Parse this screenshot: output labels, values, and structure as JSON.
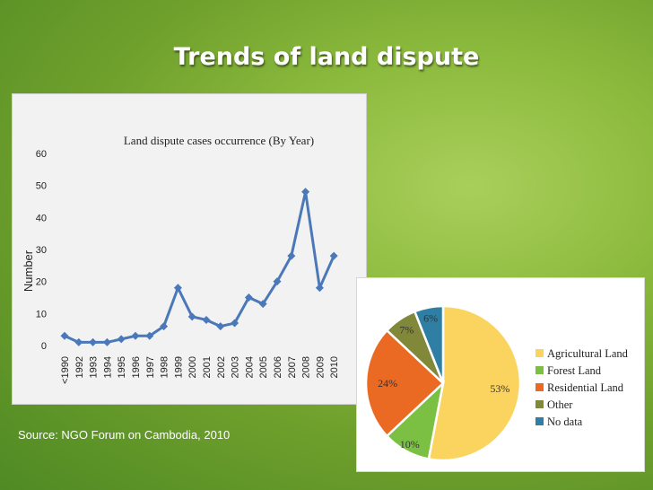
{
  "slide": {
    "title": "Trends of land dispute",
    "source": "Source: NGO Forum on Cambodia, 2010"
  },
  "colors": {
    "line": "#4a78b8",
    "agricultural": "#fad45e",
    "forest": "#7cc043",
    "residential": "#ea6a24",
    "other": "#82883a",
    "nodata": "#2f7ea4"
  },
  "chart_data": [
    {
      "type": "line",
      "title": "Land dispute cases occurrence (By Year)",
      "xlabel": "",
      "ylabel": "Number",
      "categories": [
        "<1990",
        "1992",
        "1993",
        "1994",
        "1995",
        "1996",
        "1997",
        "1998",
        "1999",
        "2000",
        "2001",
        "2002",
        "2003",
        "2004",
        "2005",
        "2006",
        "2007",
        "2008",
        "2009",
        "2010"
      ],
      "values": [
        3,
        1,
        1,
        1,
        2,
        3,
        3,
        6,
        18,
        9,
        8,
        6,
        7,
        15,
        13,
        20,
        28,
        48,
        18,
        28
      ],
      "ylim": [
        0,
        60
      ],
      "yticks": [
        0,
        10,
        20,
        30,
        40,
        50,
        60
      ],
      "grid": false
    },
    {
      "type": "pie",
      "labels": [
        "Agricultural Land",
        "Forest Land",
        "Residential Land",
        "Other",
        "No data"
      ],
      "values": [
        53,
        10,
        24,
        7,
        6
      ],
      "value_labels": [
        "53%",
        "10%",
        "24%",
        "7%",
        "6%"
      ],
      "legend": "right"
    }
  ]
}
